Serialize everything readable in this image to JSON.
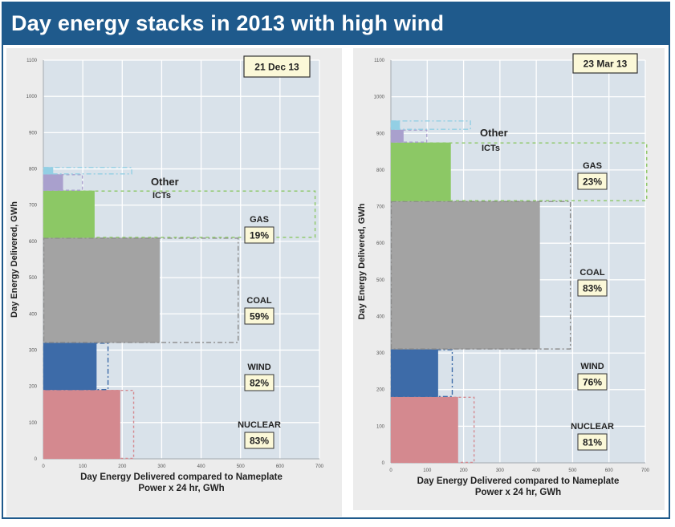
{
  "header": {
    "title": "Day energy stacks in 2013 with high wind"
  },
  "colors": {
    "nuclear": "#d4898f",
    "wind": "#3d6ba8",
    "coal": "#a3a3a3",
    "gas": "#8cc865",
    "other": "#a9a0cd",
    "icts": "#93cfe4",
    "plot_bg": "#d9e2ea",
    "grid": "#ffffff",
    "header": "#1f5a8c"
  },
  "chart_data": [
    {
      "type": "bar",
      "title": "21 Dec 13",
      "xlabel": "Day Energy Delivered compared to Nameplate Power x 24 hr, GWh",
      "ylabel": "Day Energy Delivered, GWh",
      "xlim": [
        0,
        700
      ],
      "ylim": [
        0,
        1100
      ],
      "xticks": [
        0,
        100,
        200,
        300,
        400,
        500,
        600,
        700
      ],
      "yticks": [
        0,
        100,
        200,
        300,
        400,
        500,
        600,
        700,
        800,
        900,
        1000,
        1100
      ],
      "grid": true,
      "stack": [
        {
          "name": "NUCLEAR",
          "pct": "83%",
          "y0": 0,
          "y1": 190,
          "delivered": 195,
          "nameplate": 230
        },
        {
          "name": "WIND",
          "pct": "82%",
          "y0": 190,
          "y1": 320,
          "delivered": 135,
          "nameplate": 165
        },
        {
          "name": "COAL",
          "pct": "59%",
          "y0": 320,
          "y1": 610,
          "delivered": 295,
          "nameplate": 495
        },
        {
          "name": "GAS",
          "pct": "19%",
          "y0": 610,
          "y1": 740,
          "delivered": 130,
          "nameplate": 690
        },
        {
          "name": "Other",
          "y0": 740,
          "y1": 785,
          "delivered": 50,
          "nameplate": 100
        },
        {
          "name": "ICTs",
          "y0": 785,
          "y1": 805,
          "delivered": 25,
          "nameplate": 225
        }
      ]
    },
    {
      "type": "bar",
      "title": "23 Mar 13",
      "xlabel": "Day Energy Delivered compared to Nameplate Power x 24 hr, GWh",
      "ylabel": "Day Energy Delivered, GWh",
      "xlim": [
        0,
        700
      ],
      "ylim": [
        0,
        1100
      ],
      "xticks": [
        0,
        100,
        200,
        300,
        400,
        500,
        600,
        700
      ],
      "yticks": [
        0,
        100,
        200,
        300,
        400,
        500,
        600,
        700,
        800,
        900,
        1000,
        1100
      ],
      "grid": true,
      "stack": [
        {
          "name": "NUCLEAR",
          "pct": "81%",
          "y0": 0,
          "y1": 180,
          "delivered": 185,
          "nameplate": 230
        },
        {
          "name": "WIND",
          "pct": "76%",
          "y0": 180,
          "y1": 310,
          "delivered": 130,
          "nameplate": 170
        },
        {
          "name": "COAL",
          "pct": "83%",
          "y0": 310,
          "y1": 715,
          "delivered": 410,
          "nameplate": 495
        },
        {
          "name": "GAS",
          "pct": "23%",
          "y0": 715,
          "y1": 875,
          "delivered": 165,
          "nameplate": 705
        },
        {
          "name": "Other",
          "y0": 875,
          "y1": 910,
          "delivered": 35,
          "nameplate": 100
        },
        {
          "name": "ICTs",
          "y0": 910,
          "y1": 935,
          "delivered": 25,
          "nameplate": 220
        }
      ]
    }
  ]
}
